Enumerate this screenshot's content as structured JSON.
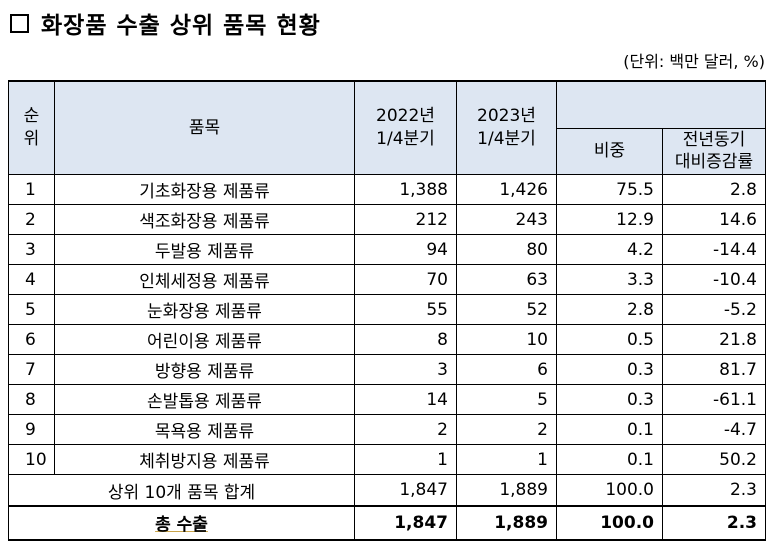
{
  "title": "화장품 수출 상위 품목 현황",
  "unit": "(단위: 백만 달러, %)",
  "headers": {
    "seq": "순\n위",
    "item": "품목",
    "q2022": "2022년\n1/4분기",
    "q2023": "2023년\n1/4분기",
    "share": "비중",
    "yoy": "전년동기\n대비증감률"
  },
  "rows": [
    {
      "seq": "1",
      "item": "기초화장용 제품류",
      "v2022": "1,388",
      "v2023": "1,426",
      "share": "75.5",
      "yoy": "2.8"
    },
    {
      "seq": "2",
      "item": "색조화장용 제품류",
      "v2022": "212",
      "v2023": "243",
      "share": "12.9",
      "yoy": "14.6"
    },
    {
      "seq": "3",
      "item": "두발용 제품류",
      "v2022": "94",
      "v2023": "80",
      "share": "4.2",
      "yoy": "-14.4"
    },
    {
      "seq": "4",
      "item": "인체세정용 제품류",
      "v2022": "70",
      "v2023": "63",
      "share": "3.3",
      "yoy": "-10.4"
    },
    {
      "seq": "5",
      "item": "눈화장용 제품류",
      "v2022": "55",
      "v2023": "52",
      "share": "2.8",
      "yoy": "-5.2"
    },
    {
      "seq": "6",
      "item": "어린이용 제품류",
      "v2022": "8",
      "v2023": "10",
      "share": "0.5",
      "yoy": "21.8"
    },
    {
      "seq": "7",
      "item": "방향용 제품류",
      "v2022": "3",
      "v2023": "6",
      "share": "0.3",
      "yoy": "81.7"
    },
    {
      "seq": "8",
      "item": "손발톱용 제품류",
      "v2022": "14",
      "v2023": "5",
      "share": "0.3",
      "yoy": "-61.1"
    },
    {
      "seq": "9",
      "item": "목욕용 제품류",
      "v2022": "2",
      "v2023": "2",
      "share": "0.1",
      "yoy": "-4.7"
    },
    {
      "seq": "10",
      "item": "체취방지용 제품류",
      "v2022": "1",
      "v2023": "1",
      "share": "0.1",
      "yoy": "50.2"
    }
  ],
  "subtotal": {
    "label": "상위 10개 품목 합계",
    "v2022": "1,847",
    "v2023": "1,889",
    "share": "100.0",
    "yoy": "2.3"
  },
  "total": {
    "label": "총 수출",
    "v2022": "1,847",
    "v2023": "1,889",
    "share": "100.0",
    "yoy": "2.3"
  }
}
